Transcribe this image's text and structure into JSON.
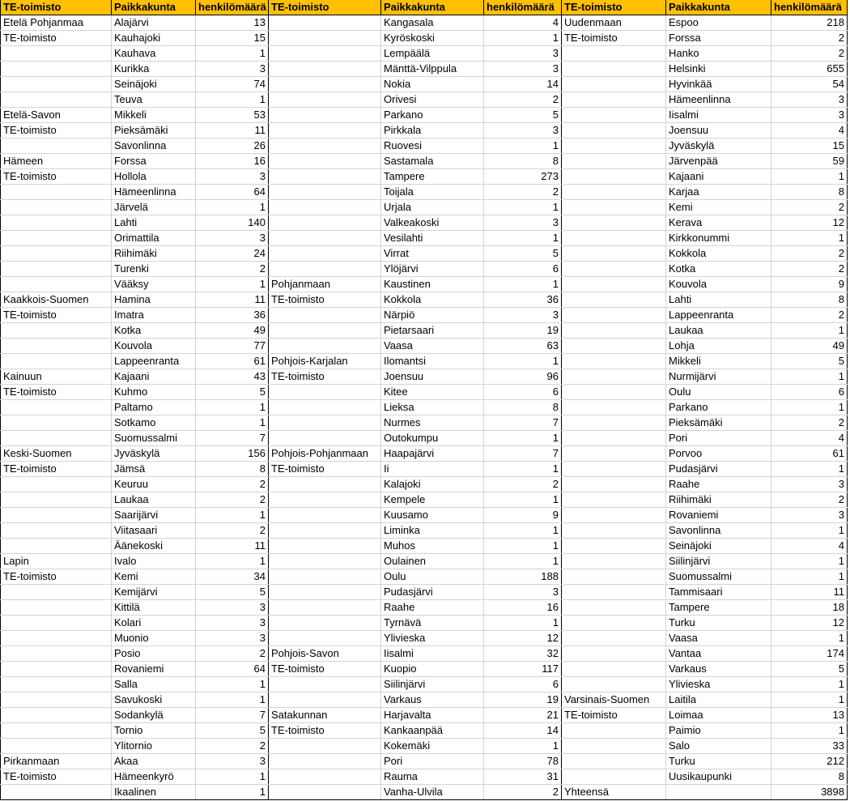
{
  "header": {
    "office": "TE-toimisto",
    "city": "Paikkakunta",
    "count": "henkilömäärä"
  },
  "colors": {
    "header_bg": "#FFC000",
    "grid": "#d4d4d4",
    "group_border": "#000000"
  },
  "panels": [
    {
      "groups": [
        {
          "office": [
            "Etelä Pohjanmaa",
            "TE-toimisto"
          ],
          "rows": [
            [
              "Alajärvi",
              "13"
            ],
            [
              "Kauhajoki",
              "15"
            ],
            [
              "Kauhava",
              "1"
            ],
            [
              "Kurikka",
              "3"
            ],
            [
              "Seinäjoki",
              "74"
            ],
            [
              "Teuva",
              "1"
            ]
          ]
        },
        {
          "office": [
            "Etelä-Savon",
            "TE-toimisto"
          ],
          "rows": [
            [
              "Mikkeli",
              "53"
            ],
            [
              "Pieksämäki",
              "11"
            ],
            [
              "Savonlinna",
              "26"
            ]
          ]
        },
        {
          "office": [
            "Hämeen",
            "TE-toimisto"
          ],
          "rows": [
            [
              "Forssa",
              "16"
            ],
            [
              "Hollola",
              "3"
            ],
            [
              "Hämeenlinna",
              "64"
            ],
            [
              "Järvelä",
              "1"
            ],
            [
              "Lahti",
              "140"
            ],
            [
              "Orimattila",
              "3"
            ],
            [
              "Riihimäki",
              "24"
            ],
            [
              "Turenki",
              "2"
            ],
            [
              "Vääksy",
              "1"
            ]
          ]
        },
        {
          "office": [
            "Kaakkois-Suomen",
            "TE-toimisto"
          ],
          "rows": [
            [
              "Hamina",
              "11"
            ],
            [
              "Imatra",
              "36"
            ],
            [
              "Kotka",
              "49"
            ],
            [
              "Kouvola",
              "77"
            ],
            [
              "Lappeenranta",
              "61"
            ]
          ]
        },
        {
          "office": [
            "Kainuun",
            "TE-toimisto"
          ],
          "rows": [
            [
              "Kajaani",
              "43"
            ],
            [
              "Kuhmo",
              "5"
            ],
            [
              "Paltamo",
              "1"
            ],
            [
              "Sotkamo",
              "1"
            ],
            [
              "Suomussalmi",
              "7"
            ]
          ]
        },
        {
          "office": [
            "Keski-Suomen",
            "TE-toimisto"
          ],
          "rows": [
            [
              "Jyväskylä",
              "156"
            ],
            [
              "Jämsä",
              "8"
            ],
            [
              "Keuruu",
              "2"
            ],
            [
              "Laukaa",
              "2"
            ],
            [
              "Saarijärvi",
              "1"
            ],
            [
              "Viitasaari",
              "2"
            ],
            [
              "Äänekoski",
              "11"
            ]
          ]
        },
        {
          "office": [
            "Lapin",
            "TE-toimisto"
          ],
          "rows": [
            [
              "Ivalo",
              "1"
            ],
            [
              "Kemi",
              "34"
            ],
            [
              "Kemijärvi",
              "5"
            ],
            [
              "Kittilä",
              "3"
            ],
            [
              "Kolari",
              "3"
            ],
            [
              "Muonio",
              "3"
            ],
            [
              "Posio",
              "2"
            ],
            [
              "Rovaniemi",
              "64"
            ],
            [
              "Salla",
              "1"
            ],
            [
              "Savukoski",
              "1"
            ],
            [
              "Sodankylä",
              "7"
            ],
            [
              "Tornio",
              "5"
            ],
            [
              "Ylitornio",
              "2"
            ]
          ]
        },
        {
          "office": [
            "Pirkanmaan",
            "TE-toimisto"
          ],
          "rows": [
            [
              "Akaa",
              "3"
            ],
            [
              "Hämeenkyrö",
              "1"
            ],
            [
              "Ikaalinen",
              "1"
            ]
          ]
        }
      ]
    },
    {
      "groups": [
        {
          "office": [],
          "rows": [
            [
              "Kangasala",
              "4"
            ],
            [
              "Kyröskoski",
              "1"
            ],
            [
              "Lempäälä",
              "3"
            ],
            [
              "Mänttä-Vilppula",
              "3"
            ],
            [
              "Nokia",
              "14"
            ],
            [
              "Orivesi",
              "2"
            ],
            [
              "Parkano",
              "5"
            ],
            [
              "Pirkkala",
              "3"
            ],
            [
              "Ruovesi",
              "1"
            ],
            [
              "Sastamala",
              "8"
            ],
            [
              "Tampere",
              "273"
            ],
            [
              "Toijala",
              "2"
            ],
            [
              "Urjala",
              "1"
            ],
            [
              "Valkeakoski",
              "3"
            ],
            [
              "Vesilahti",
              "1"
            ],
            [
              "Virrat",
              "5"
            ],
            [
              "Ylöjärvi",
              "6"
            ]
          ]
        },
        {
          "office": [
            "Pohjanmaan",
            "TE-toimisto"
          ],
          "rows": [
            [
              "Kaustinen",
              "1"
            ],
            [
              "Kokkola",
              "36"
            ],
            [
              "Närpiö",
              "3"
            ],
            [
              "Pietarsaari",
              "19"
            ],
            [
              "Vaasa",
              "63"
            ]
          ]
        },
        {
          "office": [
            "Pohjois-Karjalan",
            "TE-toimisto"
          ],
          "rows": [
            [
              "Ilomantsi",
              "1"
            ],
            [
              "Joensuu",
              "96"
            ],
            [
              "Kitee",
              "6"
            ],
            [
              "Lieksa",
              "8"
            ],
            [
              "Nurmes",
              "7"
            ],
            [
              "Outokumpu",
              "1"
            ]
          ]
        },
        {
          "office": [
            "Pohjois-Pohjanmaan",
            "TE-toimisto"
          ],
          "rows": [
            [
              "Haapajärvi",
              "7"
            ],
            [
              "Ii",
              "1"
            ],
            [
              "Kalajoki",
              "2"
            ],
            [
              "Kempele",
              "1"
            ],
            [
              "Kuusamo",
              "9"
            ],
            [
              "Liminka",
              "1"
            ],
            [
              "Muhos",
              "1"
            ],
            [
              "Oulainen",
              "1"
            ],
            [
              "Oulu",
              "188"
            ],
            [
              "Pudasjärvi",
              "3"
            ],
            [
              "Raahe",
              "16"
            ],
            [
              "Tyrnävä",
              "1"
            ],
            [
              "Ylivieska",
              "12"
            ]
          ]
        },
        {
          "office": [
            "Pohjois-Savon",
            "TE-toimisto"
          ],
          "rows": [
            [
              "Iisalmi",
              "32"
            ],
            [
              "Kuopio",
              "117"
            ],
            [
              "Siilinjärvi",
              "6"
            ],
            [
              "Varkaus",
              "19"
            ]
          ]
        },
        {
          "office": [
            "Satakunnan",
            "TE-toimisto"
          ],
          "rows": [
            [
              "Harjavalta",
              "21"
            ],
            [
              "Kankaanpää",
              "14"
            ],
            [
              "Kokemäki",
              "1"
            ],
            [
              "Pori",
              "78"
            ],
            [
              "Rauma",
              "31"
            ],
            [
              "Vanha-Ulvila",
              "2"
            ]
          ]
        }
      ]
    },
    {
      "groups": [
        {
          "office": [
            "Uudenmaan",
            "TE-toimisto"
          ],
          "rows": [
            [
              "Espoo",
              "218"
            ],
            [
              "Forssa",
              "2"
            ],
            [
              "Hanko",
              "2"
            ],
            [
              "Helsinki",
              "655"
            ],
            [
              "Hyvinkää",
              "54"
            ],
            [
              "Hämeenlinna",
              "3"
            ],
            [
              "Iisalmi",
              "3"
            ],
            [
              "Joensuu",
              "4"
            ],
            [
              "Jyväskylä",
              "15"
            ],
            [
              "Järvenpää",
              "59"
            ],
            [
              "Kajaani",
              "1"
            ],
            [
              "Karjaa",
              "8"
            ],
            [
              "Kemi",
              "2"
            ],
            [
              "Kerava",
              "12"
            ],
            [
              "Kirkkonummi",
              "1"
            ],
            [
              "Kokkola",
              "2"
            ],
            [
              "Kotka",
              "2"
            ],
            [
              "Kouvola",
              "9"
            ],
            [
              "Lahti",
              "8"
            ],
            [
              "Lappeenranta",
              "2"
            ],
            [
              "Laukaa",
              "1"
            ],
            [
              "Lohja",
              "49"
            ],
            [
              "Mikkeli",
              "5"
            ],
            [
              "Nurmijärvi",
              "1"
            ],
            [
              "Oulu",
              "6"
            ],
            [
              "Parkano",
              "1"
            ],
            [
              "Pieksämäki",
              "2"
            ],
            [
              "Pori",
              "4"
            ],
            [
              "Porvoo",
              "61"
            ],
            [
              "Pudasjärvi",
              "1"
            ],
            [
              "Raahe",
              "3"
            ],
            [
              "Riihimäki",
              "2"
            ],
            [
              "Rovaniemi",
              "3"
            ],
            [
              "Savonlinna",
              "1"
            ],
            [
              "Seinäjoki",
              "4"
            ],
            [
              "Siilinjärvi",
              "1"
            ],
            [
              "Suomussalmi",
              "1"
            ],
            [
              "Tammisaari",
              "11"
            ],
            [
              "Tampere",
              "18"
            ],
            [
              "Turku",
              "12"
            ],
            [
              "Vaasa",
              "1"
            ],
            [
              "Vantaa",
              "174"
            ],
            [
              "Varkaus",
              "5"
            ],
            [
              "Ylivieska",
              "1"
            ]
          ]
        },
        {
          "office": [
            "Varsinais-Suomen",
            "TE-toimisto"
          ],
          "rows": [
            [
              "Laitila",
              "1"
            ],
            [
              "Loimaa",
              "13"
            ],
            [
              "Paimio",
              "1"
            ],
            [
              "Salo",
              "33"
            ],
            [
              "Turku",
              "212"
            ],
            [
              "Uusikaupunki",
              "8"
            ]
          ]
        }
      ],
      "total": {
        "label": "Yhteensä",
        "value": "3898"
      }
    }
  ]
}
